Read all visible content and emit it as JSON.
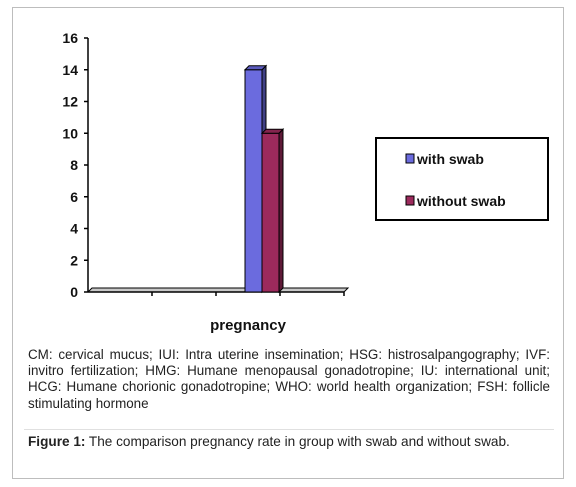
{
  "chart_data": {
    "type": "bar",
    "style": "3d",
    "categories": [
      "",
      "",
      "",
      ""
    ],
    "xlabel": "pregnancy",
    "ylim": [
      0,
      16
    ],
    "yticks": [
      0,
      2,
      4,
      6,
      8,
      10,
      12,
      14,
      16
    ],
    "grid": false,
    "legend_position": "right",
    "series": [
      {
        "name": "with swab",
        "color": "#6b6bde",
        "values": [
          0,
          0,
          14,
          0
        ]
      },
      {
        "name": "without swab",
        "color": "#9c2a5c",
        "values": [
          0,
          0,
          10,
          0
        ]
      }
    ]
  },
  "caption": {
    "abbreviations": "CM: cervical mucus;  IUI: Intra uterine insemination; HSG: histrosalpangography; IVF: invitro  fertilization; HMG: Humane menopausal  gonadotropine; IU: international unit; HCG: Humane  chorionic gonadotropine; WHO: world health organization; FSH: follicle stimulating hormone",
    "figure_label": "Figure 1:",
    "figure_text": " The comparison   pregnancy rate in group with swab and without swab."
  }
}
